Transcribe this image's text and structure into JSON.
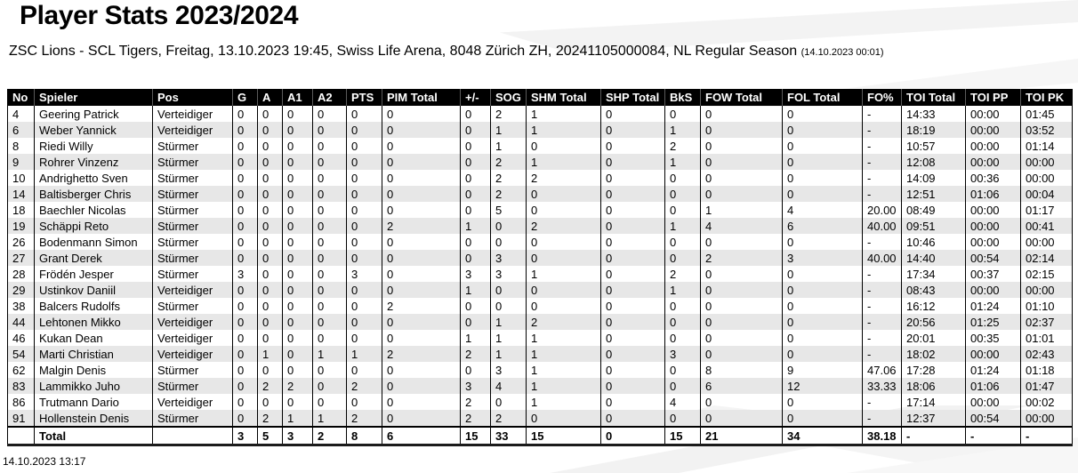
{
  "page": {
    "title": "Player Stats 2023/2024",
    "subtitle": "ZSC Lions - SCL Tigers, Freitag, 13.10.2023 19:45, Swiss Life Arena, 8048 Zürich ZH, 20241105000084, NL Regular Season",
    "subtitle_timestamp": "(14.10.2023 00:01)",
    "footer_timestamp": "14.10.2023 13:17"
  },
  "colors": {
    "header_bg": "#000000",
    "header_text": "#ffffff",
    "row_alt_bg": "#e7e7e7",
    "row_bg": "#ffffff"
  },
  "table": {
    "columns": [
      "No",
      "Spieler",
      "Pos",
      "G",
      "A",
      "A1",
      "A2",
      "PTS",
      "PIM Total",
      "+/-",
      "SOG",
      "SHM Total",
      "SHP Total",
      "BkS",
      "FOW Total",
      "FOL Total",
      "FO%",
      "TOI Total",
      "TOI PP",
      "TOI PK"
    ],
    "rows": [
      [
        "4",
        "Geering Patrick",
        "Verteidiger",
        "0",
        "0",
        "0",
        "0",
        "0",
        "0",
        "0",
        "2",
        "1",
        "0",
        "0",
        "0",
        "0",
        "-",
        "14:33",
        "00:00",
        "01:45"
      ],
      [
        "6",
        "Weber Yannick",
        "Verteidiger",
        "0",
        "0",
        "0",
        "0",
        "0",
        "0",
        "0",
        "1",
        "1",
        "0",
        "1",
        "0",
        "0",
        "-",
        "18:19",
        "00:00",
        "03:52"
      ],
      [
        "8",
        "Riedi Willy",
        "Stürmer",
        "0",
        "0",
        "0",
        "0",
        "0",
        "0",
        "0",
        "1",
        "0",
        "0",
        "2",
        "0",
        "0",
        "-",
        "10:57",
        "00:00",
        "01:14"
      ],
      [
        "9",
        "Rohrer Vinzenz",
        "Stürmer",
        "0",
        "0",
        "0",
        "0",
        "0",
        "0",
        "0",
        "2",
        "1",
        "0",
        "1",
        "0",
        "0",
        "-",
        "12:08",
        "00:00",
        "00:00"
      ],
      [
        "10",
        "Andrighetto Sven",
        "Stürmer",
        "0",
        "0",
        "0",
        "0",
        "0",
        "0",
        "0",
        "2",
        "2",
        "0",
        "0",
        "0",
        "0",
        "-",
        "14:09",
        "00:36",
        "00:00"
      ],
      [
        "14",
        "Baltisberger Chris",
        "Stürmer",
        "0",
        "0",
        "0",
        "0",
        "0",
        "0",
        "0",
        "2",
        "0",
        "0",
        "0",
        "0",
        "0",
        "-",
        "12:51",
        "01:06",
        "00:04"
      ],
      [
        "18",
        "Baechler Nicolas",
        "Stürmer",
        "0",
        "0",
        "0",
        "0",
        "0",
        "0",
        "0",
        "5",
        "0",
        "0",
        "0",
        "1",
        "4",
        "20.00",
        "08:49",
        "00:00",
        "01:17"
      ],
      [
        "19",
        "Schäppi Reto",
        "Stürmer",
        "0",
        "0",
        "0",
        "0",
        "0",
        "2",
        "1",
        "0",
        "2",
        "0",
        "1",
        "4",
        "6",
        "40.00",
        "09:51",
        "00:00",
        "00:41"
      ],
      [
        "26",
        "Bodenmann Simon",
        "Stürmer",
        "0",
        "0",
        "0",
        "0",
        "0",
        "0",
        "0",
        "0",
        "0",
        "0",
        "0",
        "0",
        "0",
        "-",
        "10:46",
        "00:00",
        "00:00"
      ],
      [
        "27",
        "Grant Derek",
        "Stürmer",
        "0",
        "0",
        "0",
        "0",
        "0",
        "0",
        "0",
        "3",
        "0",
        "0",
        "0",
        "2",
        "3",
        "40.00",
        "14:40",
        "00:54",
        "02:14"
      ],
      [
        "28",
        "Frödén Jesper",
        "Stürmer",
        "3",
        "0",
        "0",
        "0",
        "3",
        "0",
        "3",
        "3",
        "1",
        "0",
        "2",
        "0",
        "0",
        "-",
        "17:34",
        "00:37",
        "02:15"
      ],
      [
        "29",
        "Ustinkov Daniil",
        "Verteidiger",
        "0",
        "0",
        "0",
        "0",
        "0",
        "0",
        "1",
        "0",
        "0",
        "0",
        "1",
        "0",
        "0",
        "-",
        "08:43",
        "00:00",
        "00:00"
      ],
      [
        "38",
        "Balcers Rudolfs",
        "Stürmer",
        "0",
        "0",
        "0",
        "0",
        "0",
        "2",
        "0",
        "0",
        "0",
        "0",
        "0",
        "0",
        "0",
        "-",
        "16:12",
        "01:24",
        "01:10"
      ],
      [
        "44",
        "Lehtonen Mikko",
        "Verteidiger",
        "0",
        "0",
        "0",
        "0",
        "0",
        "0",
        "0",
        "1",
        "2",
        "0",
        "0",
        "0",
        "0",
        "-",
        "20:56",
        "01:25",
        "02:37"
      ],
      [
        "46",
        "Kukan Dean",
        "Verteidiger",
        "0",
        "0",
        "0",
        "0",
        "0",
        "0",
        "1",
        "1",
        "1",
        "0",
        "0",
        "0",
        "0",
        "-",
        "20:01",
        "00:35",
        "01:01"
      ],
      [
        "54",
        "Marti Christian",
        "Verteidiger",
        "0",
        "1",
        "0",
        "1",
        "1",
        "2",
        "2",
        "1",
        "1",
        "0",
        "3",
        "0",
        "0",
        "-",
        "18:02",
        "00:00",
        "02:43"
      ],
      [
        "62",
        "Malgin Denis",
        "Stürmer",
        "0",
        "0",
        "0",
        "0",
        "0",
        "0",
        "0",
        "3",
        "1",
        "0",
        "0",
        "8",
        "9",
        "47.06",
        "17:28",
        "01:24",
        "01:18"
      ],
      [
        "83",
        "Lammikko Juho",
        "Stürmer",
        "0",
        "2",
        "2",
        "0",
        "2",
        "0",
        "3",
        "4",
        "1",
        "0",
        "0",
        "6",
        "12",
        "33.33",
        "18:06",
        "01:06",
        "01:47"
      ],
      [
        "86",
        "Trutmann Dario",
        "Verteidiger",
        "0",
        "0",
        "0",
        "0",
        "0",
        "0",
        "2",
        "0",
        "1",
        "0",
        "4",
        "0",
        "0",
        "-",
        "17:14",
        "00:00",
        "00:02"
      ],
      [
        "91",
        "Hollenstein Denis",
        "Stürmer",
        "0",
        "2",
        "1",
        "1",
        "2",
        "0",
        "2",
        "2",
        "0",
        "0",
        "0",
        "0",
        "0",
        "-",
        "12:37",
        "00:54",
        "00:00"
      ]
    ],
    "total_row": [
      "",
      "Total",
      "",
      "3",
      "5",
      "3",
      "2",
      "8",
      "6",
      "15",
      "33",
      "15",
      "0",
      "15",
      "21",
      "34",
      "38.18",
      "-",
      "-",
      "-"
    ]
  }
}
